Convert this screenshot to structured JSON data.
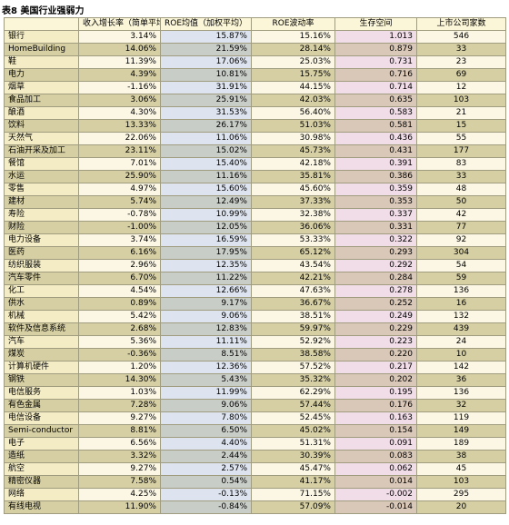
{
  "title": "表8 美国行业强弱力",
  "table": {
    "header": [
      "收入增长率（简单平均）",
      "ROE均值（加权平均）",
      "ROE波动率",
      "生存空间",
      "上市公司家数"
    ],
    "rows": [
      [
        "银行",
        "3.14%",
        "15.87%",
        "15.16%",
        "1.013",
        "546"
      ],
      [
        "HomeBuilding",
        "14.06%",
        "21.59%",
        "28.14%",
        "0.879",
        "33"
      ],
      [
        "鞋",
        "11.39%",
        "17.06%",
        "25.03%",
        "0.731",
        "23"
      ],
      [
        "电力",
        "4.39%",
        "10.81%",
        "15.75%",
        "0.716",
        "69"
      ],
      [
        "烟草",
        "-1.16%",
        "31.91%",
        "44.15%",
        "0.714",
        "12"
      ],
      [
        "食品加工",
        "3.06%",
        "25.91%",
        "42.03%",
        "0.635",
        "103"
      ],
      [
        "酿酒",
        "4.30%",
        "31.53%",
        "56.40%",
        "0.583",
        "21"
      ],
      [
        "饮料",
        "13.33%",
        "26.17%",
        "51.03%",
        "0.581",
        "15"
      ],
      [
        "天然气",
        "22.06%",
        "11.06%",
        "30.98%",
        "0.436",
        "55"
      ],
      [
        "石油开采及加工",
        "23.11%",
        "15.02%",
        "45.73%",
        "0.431",
        "177"
      ],
      [
        "餐馆",
        "7.01%",
        "15.40%",
        "42.18%",
        "0.391",
        "83"
      ],
      [
        "水运",
        "25.90%",
        "11.16%",
        "35.81%",
        "0.386",
        "33"
      ],
      [
        "零售",
        "4.97%",
        "15.60%",
        "45.60%",
        "0.359",
        "48"
      ],
      [
        "建材",
        "5.74%",
        "12.49%",
        "37.33%",
        "0.353",
        "50"
      ],
      [
        "寿险",
        "-0.78%",
        "10.99%",
        "32.38%",
        "0.337",
        "42"
      ],
      [
        "财险",
        "-1.00%",
        "12.05%",
        "36.06%",
        "0.331",
        "77"
      ],
      [
        "电力设备",
        "3.74%",
        "16.59%",
        "53.33%",
        "0.322",
        "92"
      ],
      [
        "医药",
        "6.16%",
        "17.95%",
        "65.12%",
        "0.293",
        "304"
      ],
      [
        "纺织服装",
        "2.96%",
        "12.35%",
        "43.54%",
        "0.292",
        "54"
      ],
      [
        "汽车零件",
        "6.70%",
        "11.22%",
        "42.21%",
        "0.284",
        "59"
      ],
      [
        "化工",
        "4.54%",
        "12.66%",
        "47.63%",
        "0.278",
        "136"
      ],
      [
        "供水",
        "0.89%",
        "9.17%",
        "36.67%",
        "0.252",
        "16"
      ],
      [
        "机械",
        "5.42%",
        "9.06%",
        "38.51%",
        "0.249",
        "132"
      ],
      [
        "软件及信息系统",
        "2.68%",
        "12.83%",
        "59.97%",
        "0.229",
        "439"
      ],
      [
        "汽车",
        "5.36%",
        "11.11%",
        "52.92%",
        "0.223",
        "24"
      ],
      [
        "煤炭",
        "-0.36%",
        "8.51%",
        "38.58%",
        "0.220",
        "10"
      ],
      [
        "计算机硬件",
        "1.20%",
        "12.36%",
        "57.52%",
        "0.217",
        "142"
      ],
      [
        "钢铁",
        "14.30%",
        "5.43%",
        "35.32%",
        "0.202",
        "36"
      ],
      [
        "电信服务",
        "1.03%",
        "11.99%",
        "62.29%",
        "0.195",
        "136"
      ],
      [
        "有色金属",
        "7.28%",
        "9.06%",
        "57.44%",
        "0.176",
        "32"
      ],
      [
        "电信设备",
        "9.27%",
        "7.80%",
        "52.45%",
        "0.163",
        "119"
      ],
      [
        "Semi-conductor",
        "8.81%",
        "6.50%",
        "45.02%",
        "0.154",
        "149"
      ],
      [
        "电子",
        "6.56%",
        "4.40%",
        "51.31%",
        "0.091",
        "189"
      ],
      [
        "造纸",
        "3.32%",
        "2.44%",
        "30.39%",
        "0.083",
        "38"
      ],
      [
        "航空",
        "9.27%",
        "2.57%",
        "45.47%",
        "0.062",
        "45"
      ],
      [
        "精密仪器",
        "7.58%",
        "0.54%",
        "41.17%",
        "0.014",
        "103"
      ],
      [
        "网络",
        "4.25%",
        "-0.13%",
        "71.15%",
        "-0.002",
        "295"
      ],
      [
        "有线电视",
        "11.90%",
        "-0.84%",
        "57.09%",
        "-0.014",
        "20"
      ]
    ]
  }
}
